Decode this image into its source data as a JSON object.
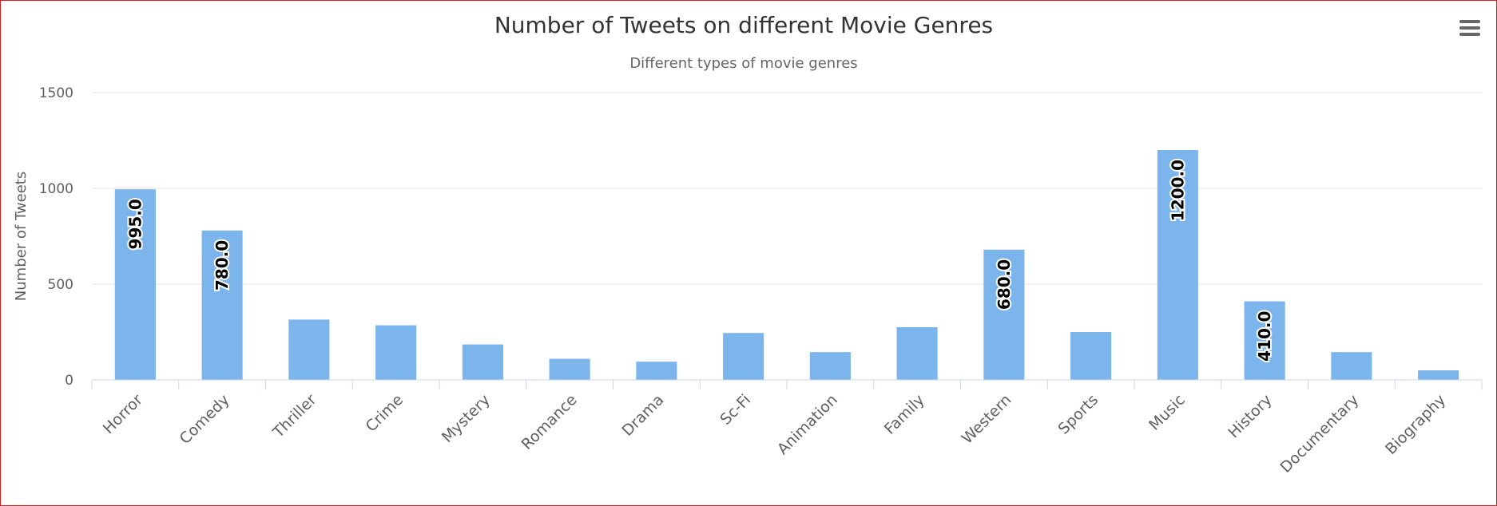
{
  "chart_data": {
    "type": "bar",
    "title": "Number of Tweets on different Movie Genres",
    "subtitle": "Different types of movie genres",
    "ylabel": "Number of Tweets",
    "xlabel": "",
    "ylim": [
      0,
      1500
    ],
    "yticks": [
      0,
      500,
      1000,
      1500
    ],
    "grid": true,
    "legend": "none",
    "bar_color": "#7cb5ec",
    "categories": [
      "Horror",
      "Comedy",
      "Thriller",
      "Crime",
      "Mystery",
      "Romance",
      "Drama",
      "Sc-Fi",
      "Animation",
      "Family",
      "Western",
      "Sports",
      "Music",
      "History",
      "Documentary",
      "Biography"
    ],
    "values": [
      995,
      780,
      315,
      285,
      185,
      110,
      95,
      245,
      145,
      275,
      680,
      250,
      1200,
      410,
      145,
      50
    ],
    "data_labels": [
      "995.0",
      "780.0",
      null,
      null,
      null,
      null,
      null,
      null,
      null,
      null,
      "680.0",
      null,
      "1200.0",
      "410.0",
      null,
      null
    ]
  },
  "toolbar": {
    "menu_icon": "hamburger-menu-icon"
  }
}
